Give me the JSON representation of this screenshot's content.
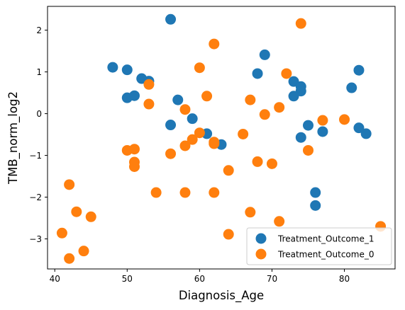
{
  "chart_data": {
    "type": "scatter",
    "xlabel": "Diagnosis_Age",
    "ylabel": "TMB_norm_log2",
    "xlim": [
      39,
      87
    ],
    "ylim": [
      -3.72,
      2.57
    ],
    "xticks": [
      40,
      50,
      60,
      70,
      80
    ],
    "yticks": [
      -3,
      -2,
      -1,
      0,
      1,
      2
    ],
    "ytick_labels": [
      "−3",
      "−2",
      "−1",
      "0",
      "1",
      "2"
    ],
    "grid": false,
    "legend_position": "lower-right",
    "series": [
      {
        "name": "Treatment_Outcome_1",
        "color": "#1f77b4",
        "points": [
          [
            56,
            2.26
          ],
          [
            48,
            1.11
          ],
          [
            50,
            1.05
          ],
          [
            52,
            0.84
          ],
          [
            53,
            0.78
          ],
          [
            50,
            0.38
          ],
          [
            51,
            0.43
          ],
          [
            57,
            0.33
          ],
          [
            59,
            -0.12
          ],
          [
            56,
            -0.27
          ],
          [
            61,
            -0.48
          ],
          [
            63,
            -0.74
          ],
          [
            68,
            0.96
          ],
          [
            69,
            1.41
          ],
          [
            73,
            0.77
          ],
          [
            74,
            0.65
          ],
          [
            74,
            0.54
          ],
          [
            73,
            0.42
          ],
          [
            75,
            -0.28
          ],
          [
            74,
            -0.57
          ],
          [
            77,
            -0.43
          ],
          [
            76,
            -1.89
          ],
          [
            76,
            -2.2
          ],
          [
            81,
            0.62
          ],
          [
            82,
            1.04
          ],
          [
            82,
            -0.34
          ],
          [
            83,
            -0.48
          ]
        ]
      },
      {
        "name": "Treatment_Outcome_0",
        "color": "#ff7f0e",
        "points": [
          [
            74,
            2.16
          ],
          [
            62,
            1.67
          ],
          [
            60,
            1.1
          ],
          [
            72,
            0.96
          ],
          [
            53,
            0.7
          ],
          [
            61,
            0.42
          ],
          [
            53,
            0.23
          ],
          [
            58,
            0.1
          ],
          [
            67,
            0.33
          ],
          [
            71,
            0.15
          ],
          [
            69,
            -0.02
          ],
          [
            60,
            -0.46
          ],
          [
            59,
            -0.62
          ],
          [
            62,
            -0.68
          ],
          [
            62,
            -0.72
          ],
          [
            58,
            -0.77
          ],
          [
            56,
            -0.96
          ],
          [
            50,
            -0.88
          ],
          [
            51,
            -0.85
          ],
          [
            51,
            -1.16
          ],
          [
            51,
            -1.27
          ],
          [
            66,
            -0.49
          ],
          [
            68,
            -1.15
          ],
          [
            70,
            -1.2
          ],
          [
            64,
            -1.36
          ],
          [
            77,
            -0.16
          ],
          [
            80,
            -0.14
          ],
          [
            75,
            -0.88
          ],
          [
            42,
            -1.7
          ],
          [
            54,
            -1.89
          ],
          [
            58,
            -1.89
          ],
          [
            62,
            -1.89
          ],
          [
            43,
            -2.35
          ],
          [
            45,
            -2.47
          ],
          [
            67,
            -2.36
          ],
          [
            71,
            -2.58
          ],
          [
            41,
            -2.86
          ],
          [
            44,
            -3.29
          ],
          [
            42,
            -3.47
          ],
          [
            64,
            -2.89
          ],
          [
            85,
            -2.7
          ]
        ]
      }
    ]
  }
}
